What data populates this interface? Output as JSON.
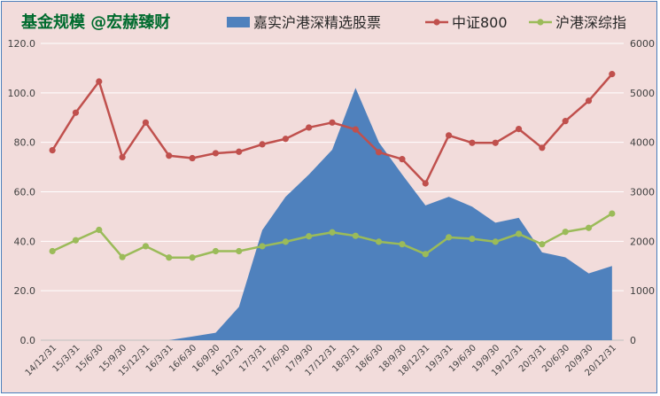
{
  "chart_data": {
    "type": "line",
    "title": "基金规模 @宏赫臻财",
    "legend_position": "top",
    "grid": "horizontal",
    "categories": [
      "14/12/31",
      "15/3/31",
      "15/6/30",
      "15/9/30",
      "15/12/31",
      "16/3/31",
      "16/6/30",
      "16/9/30",
      "16/12/31",
      "17/3/31",
      "17/6/30",
      "17/9/30",
      "17/12/31",
      "18/3/31",
      "18/6/30",
      "18/9/30",
      "18/12/31",
      "19/3/31",
      "19/6/30",
      "19/9/30",
      "19/12/31",
      "20/3/31",
      "20/6/30",
      "20/9/30",
      "20/12/31"
    ],
    "left_axis": {
      "min": 0,
      "max": 120,
      "step": 20,
      "tick_labels": [
        "0.0",
        "20.0",
        "40.0",
        "60.0",
        "80.0",
        "100.0",
        "120.0"
      ]
    },
    "right_axis": {
      "min": 0,
      "max": 6000,
      "step": 1000,
      "tick_labels": [
        "0",
        "1000",
        "2000",
        "3000",
        "4000",
        "5000",
        "6000"
      ]
    },
    "series": [
      {
        "name": "嘉实沪港深精选股票",
        "type": "area",
        "axis": "left",
        "color": "#4f81bd",
        "values": [
          null,
          null,
          null,
          null,
          null,
          0.0,
          1.5,
          3.0,
          13.5,
          44.5,
          58.0,
          67.0,
          77.0,
          102.0,
          80.0,
          67.0,
          54.5,
          58.0,
          54.0,
          47.5,
          49.5,
          35.5,
          33.5,
          27.0,
          30.0
        ]
      },
      {
        "name": "中证800",
        "type": "line",
        "axis": "right",
        "color": "#c0504d",
        "values": [
          3840,
          4600,
          5230,
          3700,
          4400,
          3730,
          3680,
          3780,
          3810,
          3960,
          4070,
          4300,
          4400,
          4260,
          3800,
          3660,
          3170,
          4140,
          3990,
          3990,
          4270,
          3890,
          4430,
          4840,
          5380
        ]
      },
      {
        "name": "沪港深综指",
        "type": "line",
        "axis": "right",
        "color": "#9bbb59",
        "values": [
          1800,
          2020,
          2230,
          1680,
          1900,
          1670,
          1670,
          1800,
          1800,
          1900,
          1990,
          2100,
          2180,
          2110,
          1990,
          1940,
          1740,
          2080,
          2050,
          1990,
          2150,
          1940,
          2190,
          2270,
          2560
        ]
      }
    ]
  }
}
